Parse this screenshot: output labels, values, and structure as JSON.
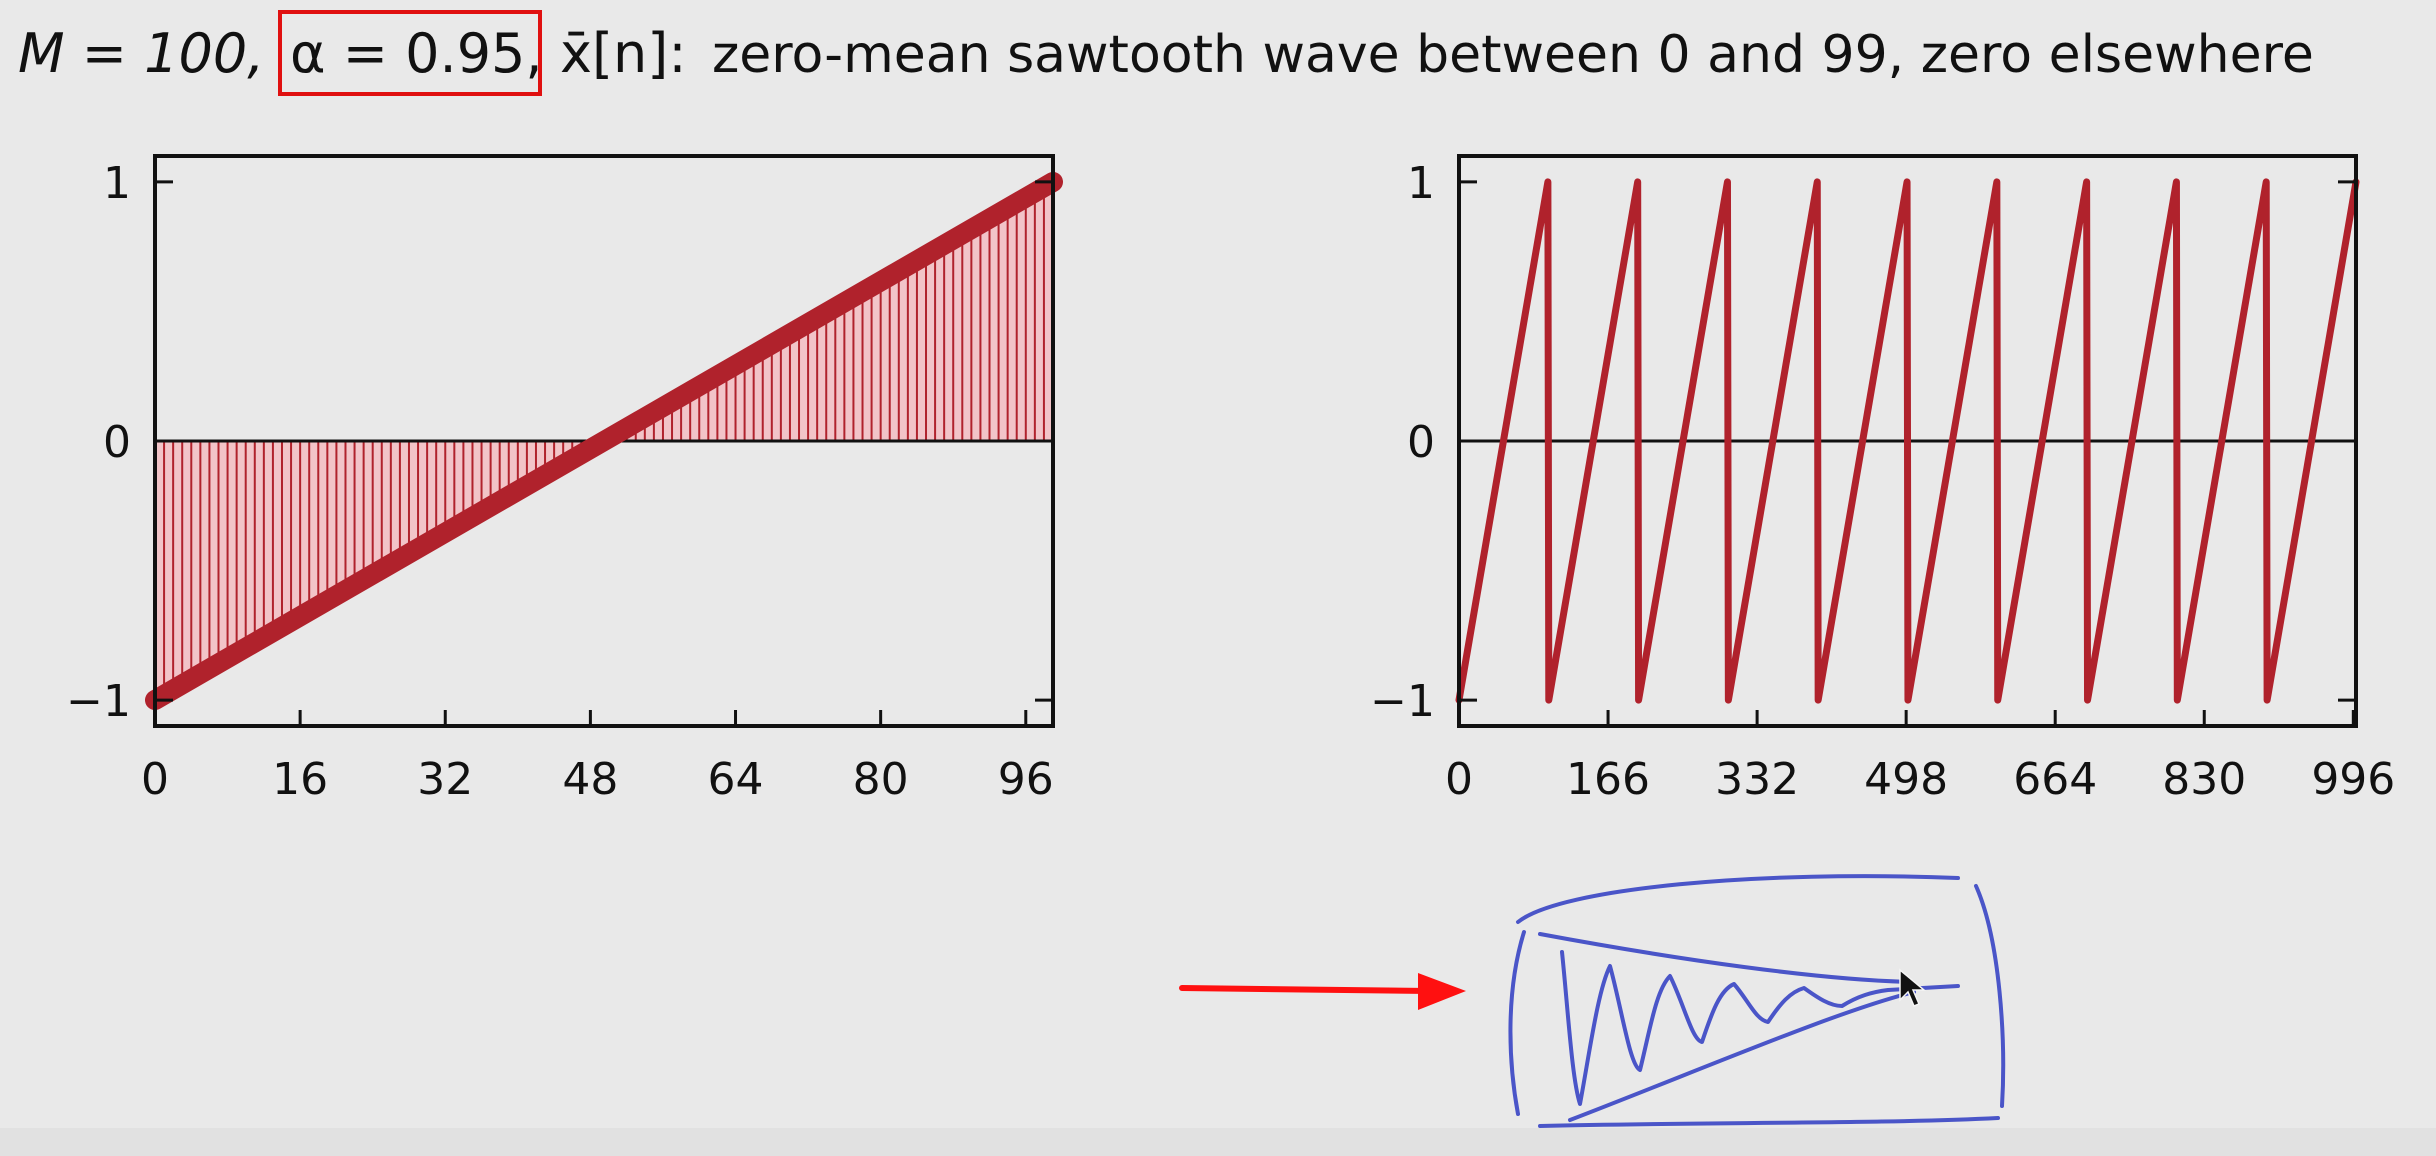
{
  "slide": {
    "title": {
      "m_part": "M = 100,",
      "alpha_part": "α = 0.95,",
      "signal_part": "x̄[n]:",
      "description": "zero-mean sawtooth wave between 0 and 99, zero elsewhere"
    }
  },
  "colors": {
    "background": "#e9e9e9",
    "signal": "#b0222c",
    "stem_fill": "#f2c4c8",
    "annotation_box": "#e01010",
    "arrow": "#ff1010",
    "sketch": "#4a55c8",
    "axis": "#111111"
  },
  "chart_data": [
    {
      "type": "stem",
      "x": {
        "start": 0,
        "end": 99,
        "step": 1
      },
      "formula": "y = -1 + 2n/99",
      "y_start": -1,
      "y_end": 1,
      "xlim": [
        0,
        99
      ],
      "ylim": [
        -1.1,
        1.1
      ],
      "xticks": [
        "0",
        "16",
        "32",
        "48",
        "64",
        "80",
        "96"
      ],
      "xtick_values": [
        0,
        16,
        32,
        48,
        64,
        80,
        96
      ],
      "yticks": [
        "1",
        "0",
        "−1"
      ],
      "ytick_values": [
        1,
        0,
        -1
      ],
      "zero_line": true,
      "grid": false
    },
    {
      "type": "line",
      "description_of_series": "sawtooth repeated with period 100, samples 0 to 999",
      "period": 100,
      "x_range": [
        0,
        999
      ],
      "y_range": [
        -1,
        1
      ],
      "xlim": [
        0,
        999
      ],
      "ylim": [
        -1.1,
        1.1
      ],
      "xticks": [
        "0",
        "166",
        "332",
        "498",
        "664",
        "830",
        "996"
      ],
      "xtick_values": [
        0,
        166,
        332,
        498,
        664,
        830,
        996
      ],
      "yticks": [
        "1",
        "0",
        "−1"
      ],
      "ytick_values": [
        1,
        0,
        -1
      ],
      "zero_line": true,
      "grid": false
    }
  ]
}
